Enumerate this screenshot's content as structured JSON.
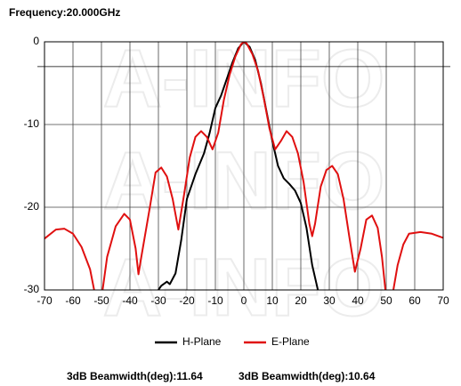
{
  "chart_data": {
    "type": "line",
    "title": "Frequency:20.000GHz",
    "watermark": "A-INFO",
    "xlim": [
      -70,
      70
    ],
    "xticks": [
      -70,
      -60,
      -50,
      -40,
      -30,
      -20,
      -10,
      0,
      10,
      20,
      30,
      40,
      50,
      60,
      70
    ],
    "ylim": [
      -30,
      0
    ],
    "yticks": [
      0,
      -10,
      -20,
      -30
    ],
    "reference_line": -3,
    "grid": true,
    "legend": "bottom",
    "series": [
      {
        "name": "H-Plane",
        "color": "#000000",
        "x": [
          -30,
          -29,
          -27,
          -26,
          -24,
          -22,
          -20,
          -17,
          -14,
          -12,
          -10,
          -8,
          -6,
          -4,
          -2,
          0,
          2,
          4,
          6,
          8,
          10,
          12,
          14,
          16,
          18,
          20,
          22,
          24,
          26
        ],
        "values": [
          -30,
          -29.5,
          -29,
          -29.3,
          -28,
          -24,
          -19,
          -16,
          -13.5,
          -11,
          -8,
          -6.5,
          -4.5,
          -2.5,
          -0.8,
          0,
          -0.6,
          -2.2,
          -5,
          -8.5,
          -12,
          -15,
          -16.5,
          -17.2,
          -18,
          -19.5,
          -22.5,
          -27,
          -30
        ]
      },
      {
        "name": "E-Plane",
        "color": "#e01010",
        "x": [
          -70,
          -66,
          -63,
          -60,
          -57,
          -54,
          -52,
          -50,
          -48,
          -45,
          -42,
          -40,
          -38,
          -37,
          -36,
          -33,
          -31,
          -29,
          -27,
          -25,
          -23,
          -21,
          -19,
          -17,
          -15,
          -13,
          -11,
          -9,
          -7,
          -5,
          -3,
          -1,
          0,
          1,
          3,
          5,
          7,
          9,
          11,
          13,
          15,
          17,
          19,
          21,
          23,
          24,
          25,
          27,
          29,
          31,
          33,
          35,
          37,
          39,
          41,
          43,
          45,
          47,
          48.5,
          50,
          52,
          54,
          56,
          58,
          62,
          66,
          70
        ],
        "values": [
          -23.8,
          -22.7,
          -22.6,
          -23.2,
          -24.8,
          -27.5,
          -31,
          -31,
          -26,
          -22.3,
          -20.8,
          -21.5,
          -25,
          -28.1,
          -26,
          -20,
          -15.8,
          -15.2,
          -16.3,
          -19,
          -22.7,
          -18.5,
          -14,
          -11.5,
          -10.8,
          -11.5,
          -13,
          -11,
          -7,
          -4,
          -1.8,
          -0.3,
          0,
          -0.2,
          -1.5,
          -3.5,
          -6.8,
          -10.5,
          -13,
          -12,
          -10.8,
          -11.5,
          -13.5,
          -17,
          -22,
          -23.5,
          -22,
          -17.5,
          -15.5,
          -15,
          -16,
          -19,
          -23.5,
          -27.8,
          -25,
          -21.5,
          -21,
          -22.5,
          -26,
          -31,
          -31,
          -27,
          -24.5,
          -23.2,
          -23,
          -23.2,
          -23.7
        ]
      }
    ],
    "annotations": [
      "3dB Beamwidth(deg):11.64",
      "3dB Beamwidth(deg):10.64"
    ]
  }
}
